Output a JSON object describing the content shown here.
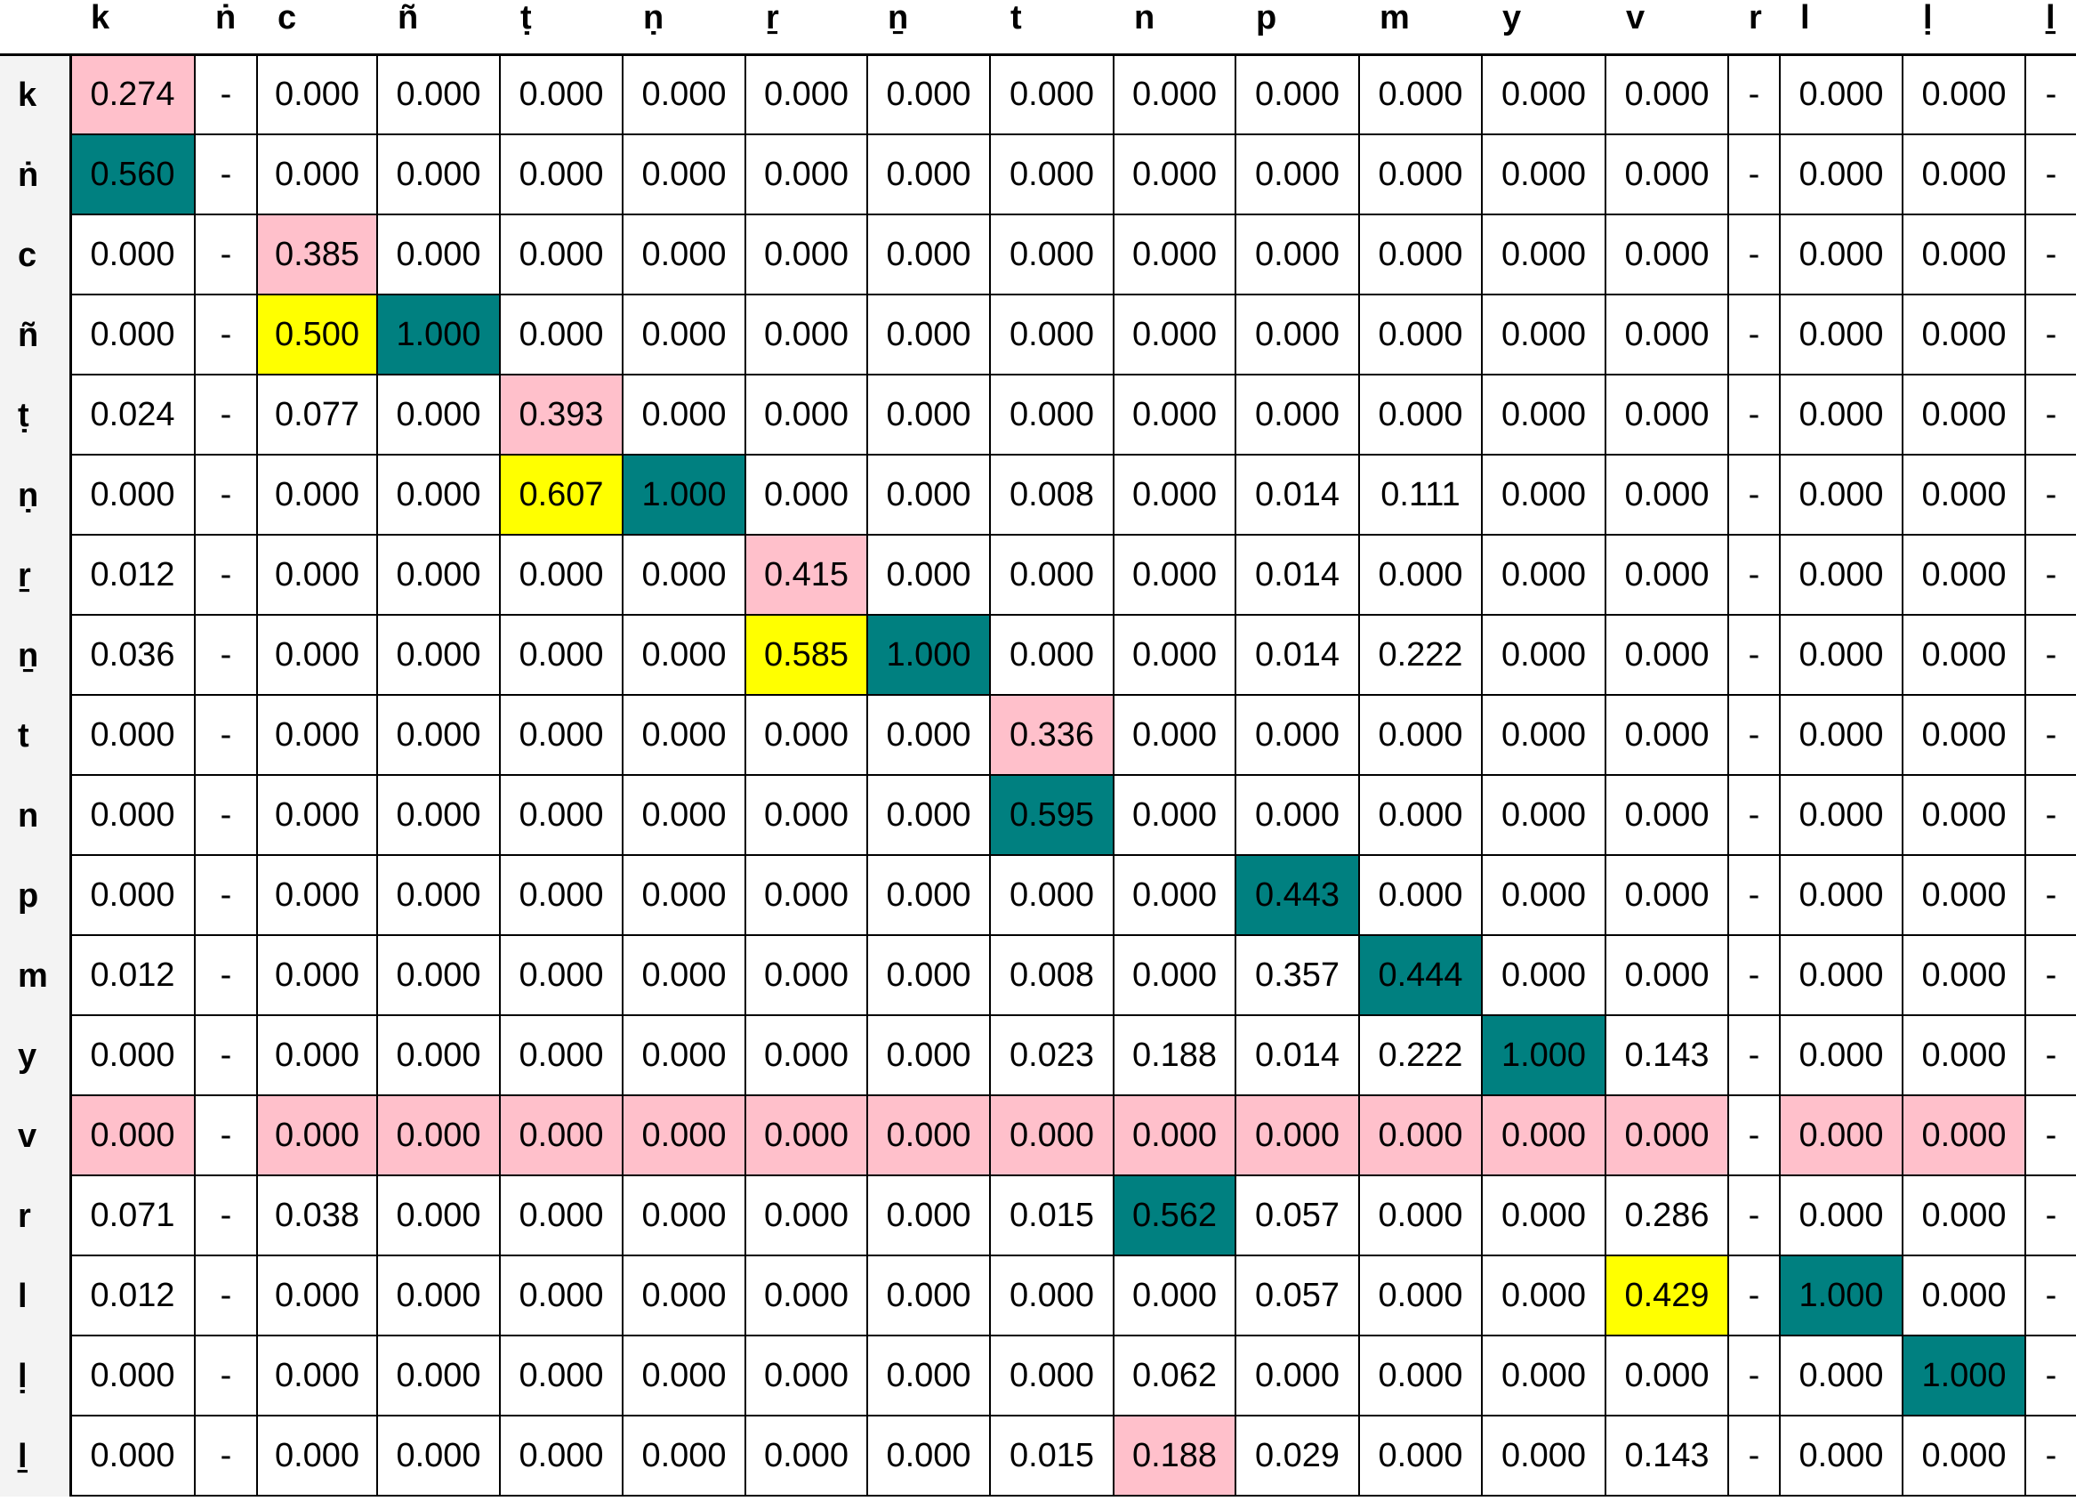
{
  "chart_data": {
    "type": "table",
    "columns": [
      "k",
      "ṅ",
      "c",
      "ñ",
      "ṭ",
      "ṇ",
      "ṟ",
      "ṉ",
      "t",
      "n",
      "p",
      "m",
      "y",
      "v",
      "r",
      "l",
      "ḷ",
      "ḻ"
    ],
    "rows": [
      "k",
      "ṅ",
      "c",
      "ñ",
      "ṭ",
      "ṇ",
      "ṟ",
      "ṉ",
      "t",
      "n",
      "p",
      "m",
      "y",
      "v",
      "r",
      "l",
      "ḷ",
      "ḻ"
    ],
    "cells": [
      [
        "0.274",
        "-",
        "0.000",
        "0.000",
        "0.000",
        "0.000",
        "0.000",
        "0.000",
        "0.000",
        "0.000",
        "0.000",
        "0.000",
        "0.000",
        "0.000",
        "-",
        "0.000",
        "0.000",
        "-"
      ],
      [
        "0.560",
        "-",
        "0.000",
        "0.000",
        "0.000",
        "0.000",
        "0.000",
        "0.000",
        "0.000",
        "0.000",
        "0.000",
        "0.000",
        "0.000",
        "0.000",
        "-",
        "0.000",
        "0.000",
        "-"
      ],
      [
        "0.000",
        "-",
        "0.385",
        "0.000",
        "0.000",
        "0.000",
        "0.000",
        "0.000",
        "0.000",
        "0.000",
        "0.000",
        "0.000",
        "0.000",
        "0.000",
        "-",
        "0.000",
        "0.000",
        "-"
      ],
      [
        "0.000",
        "-",
        "0.500",
        "1.000",
        "0.000",
        "0.000",
        "0.000",
        "0.000",
        "0.000",
        "0.000",
        "0.000",
        "0.000",
        "0.000",
        "0.000",
        "-",
        "0.000",
        "0.000",
        "-"
      ],
      [
        "0.024",
        "-",
        "0.077",
        "0.000",
        "0.393",
        "0.000",
        "0.000",
        "0.000",
        "0.000",
        "0.000",
        "0.000",
        "0.000",
        "0.000",
        "0.000",
        "-",
        "0.000",
        "0.000",
        "-"
      ],
      [
        "0.000",
        "-",
        "0.000",
        "0.000",
        "0.607",
        "1.000",
        "0.000",
        "0.000",
        "0.008",
        "0.000",
        "0.014",
        "0.111",
        "0.000",
        "0.000",
        "-",
        "0.000",
        "0.000",
        "-"
      ],
      [
        "0.012",
        "-",
        "0.000",
        "0.000",
        "0.000",
        "0.000",
        "0.415",
        "0.000",
        "0.000",
        "0.000",
        "0.014",
        "0.000",
        "0.000",
        "0.000",
        "-",
        "0.000",
        "0.000",
        "-"
      ],
      [
        "0.036",
        "-",
        "0.000",
        "0.000",
        "0.000",
        "0.000",
        "0.585",
        "1.000",
        "0.000",
        "0.000",
        "0.014",
        "0.222",
        "0.000",
        "0.000",
        "-",
        "0.000",
        "0.000",
        "-"
      ],
      [
        "0.000",
        "-",
        "0.000",
        "0.000",
        "0.000",
        "0.000",
        "0.000",
        "0.000",
        "0.336",
        "0.000",
        "0.000",
        "0.000",
        "0.000",
        "0.000",
        "-",
        "0.000",
        "0.000",
        "-"
      ],
      [
        "0.000",
        "-",
        "0.000",
        "0.000",
        "0.000",
        "0.000",
        "0.000",
        "0.000",
        "0.595",
        "0.000",
        "0.000",
        "0.000",
        "0.000",
        "0.000",
        "-",
        "0.000",
        "0.000",
        "-"
      ],
      [
        "0.000",
        "-",
        "0.000",
        "0.000",
        "0.000",
        "0.000",
        "0.000",
        "0.000",
        "0.000",
        "0.000",
        "0.443",
        "0.000",
        "0.000",
        "0.000",
        "-",
        "0.000",
        "0.000",
        "-"
      ],
      [
        "0.012",
        "-",
        "0.000",
        "0.000",
        "0.000",
        "0.000",
        "0.000",
        "0.000",
        "0.008",
        "0.000",
        "0.357",
        "0.444",
        "0.000",
        "0.000",
        "-",
        "0.000",
        "0.000",
        "-"
      ],
      [
        "0.000",
        "-",
        "0.000",
        "0.000",
        "0.000",
        "0.000",
        "0.000",
        "0.000",
        "0.023",
        "0.188",
        "0.014",
        "0.222",
        "1.000",
        "0.143",
        "-",
        "0.000",
        "0.000",
        "-"
      ],
      [
        "0.000",
        "-",
        "0.000",
        "0.000",
        "0.000",
        "0.000",
        "0.000",
        "0.000",
        "0.000",
        "0.000",
        "0.000",
        "0.000",
        "0.000",
        "0.000",
        "-",
        "0.000",
        "0.000",
        "-"
      ],
      [
        "0.071",
        "-",
        "0.038",
        "0.000",
        "0.000",
        "0.000",
        "0.000",
        "0.000",
        "0.015",
        "0.562",
        "0.057",
        "0.000",
        "0.000",
        "0.286",
        "-",
        "0.000",
        "0.000",
        "-"
      ],
      [
        "0.012",
        "-",
        "0.000",
        "0.000",
        "0.000",
        "0.000",
        "0.000",
        "0.000",
        "0.000",
        "0.000",
        "0.057",
        "0.000",
        "0.000",
        "0.429",
        "-",
        "1.000",
        "0.000",
        "-"
      ],
      [
        "0.000",
        "-",
        "0.000",
        "0.000",
        "0.000",
        "0.000",
        "0.000",
        "0.000",
        "0.000",
        "0.062",
        "0.000",
        "0.000",
        "0.000",
        "0.000",
        "-",
        "0.000",
        "1.000",
        "-"
      ],
      [
        "0.000",
        "-",
        "0.000",
        "0.000",
        "0.000",
        "0.000",
        "0.000",
        "0.000",
        "0.015",
        "0.188",
        "0.029",
        "0.000",
        "0.000",
        "0.143",
        "-",
        "0.000",
        "0.000",
        "-"
      ]
    ],
    "highlights": {
      "colors": {
        "pink": "#ffc0cb",
        "teal": "#008080",
        "yellow": "#ffff00"
      },
      "pink": [
        [
          0,
          0
        ],
        [
          2,
          2
        ],
        [
          4,
          4
        ],
        [
          6,
          6
        ],
        [
          8,
          8
        ],
        [
          13,
          0
        ],
        [
          13,
          2
        ],
        [
          13,
          3
        ],
        [
          13,
          4
        ],
        [
          13,
          5
        ],
        [
          13,
          6
        ],
        [
          13,
          7
        ],
        [
          13,
          8
        ],
        [
          13,
          9
        ],
        [
          13,
          10
        ],
        [
          13,
          11
        ],
        [
          13,
          12
        ],
        [
          13,
          13
        ],
        [
          13,
          15
        ],
        [
          13,
          16
        ],
        [
          17,
          9
        ]
      ],
      "teal": [
        [
          1,
          0
        ],
        [
          3,
          3
        ],
        [
          5,
          5
        ],
        [
          7,
          7
        ],
        [
          9,
          8
        ],
        [
          10,
          10
        ],
        [
          11,
          11
        ],
        [
          12,
          12
        ],
        [
          14,
          9
        ],
        [
          15,
          15
        ],
        [
          16,
          16
        ]
      ],
      "yellow": [
        [
          3,
          2
        ],
        [
          5,
          4
        ],
        [
          7,
          6
        ],
        [
          15,
          13
        ]
      ]
    }
  }
}
